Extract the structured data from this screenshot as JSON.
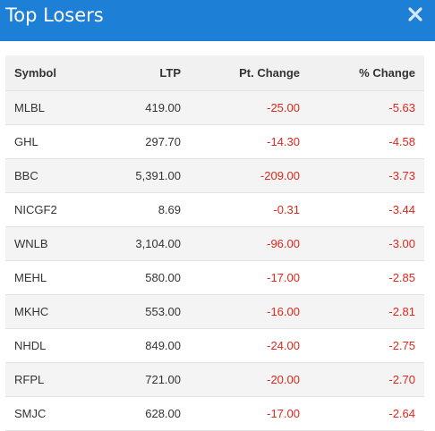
{
  "header": {
    "title": "Top Losers",
    "close_icon": "close-icon"
  },
  "colors": {
    "header_bg": "#1d7fd6",
    "negative": "#e0261c"
  },
  "table": {
    "columns": [
      "Symbol",
      "LTP",
      "Pt. Change",
      "% Change"
    ],
    "rows": [
      {
        "symbol": "MLBL",
        "ltp": "419.00",
        "pt_change": "-25.00",
        "pct_change": "-5.63"
      },
      {
        "symbol": "GHL",
        "ltp": "297.70",
        "pt_change": "-14.30",
        "pct_change": "-4.58"
      },
      {
        "symbol": "BBC",
        "ltp": "5,391.00",
        "pt_change": "-209.00",
        "pct_change": "-3.73"
      },
      {
        "symbol": "NICGF2",
        "ltp": "8.69",
        "pt_change": "-0.31",
        "pct_change": "-3.44"
      },
      {
        "symbol": "WNLB",
        "ltp": "3,104.00",
        "pt_change": "-96.00",
        "pct_change": "-3.00"
      },
      {
        "symbol": "MEHL",
        "ltp": "580.00",
        "pt_change": "-17.00",
        "pct_change": "-2.85"
      },
      {
        "symbol": "MKHC",
        "ltp": "553.00",
        "pt_change": "-16.00",
        "pct_change": "-2.81"
      },
      {
        "symbol": "NHDL",
        "ltp": "849.00",
        "pt_change": "-24.00",
        "pct_change": "-2.75"
      },
      {
        "symbol": "RFPL",
        "ltp": "721.00",
        "pt_change": "-20.00",
        "pct_change": "-2.70"
      },
      {
        "symbol": "SMJC",
        "ltp": "628.00",
        "pt_change": "-17.00",
        "pct_change": "-2.64"
      }
    ]
  }
}
